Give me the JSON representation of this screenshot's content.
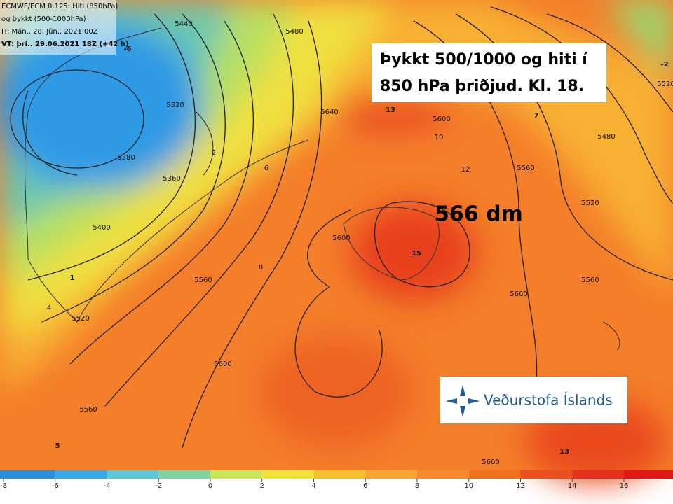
{
  "header": {
    "lines": [
      "ECMWF/ECM 0.125: Hiti (850hPa)",
      "og þykkt (500-1000hPa)",
      "IT: Mán.. 28. Jún.. 2021 00Z",
      "VT: þri.. 29.06.2021 18Z (+42 h)"
    ]
  },
  "title": {
    "lines": [
      "Þykkt 500/1000 og hiti í",
      "850 hPa þriðjud. Kl. 18."
    ]
  },
  "annotation": "566 dm",
  "logo": "Veðurstofa Íslands",
  "colorbar": {
    "ticks": [
      -8,
      -6,
      -4,
      -2,
      0,
      2,
      4,
      6,
      8,
      10,
      12,
      14,
      16
    ],
    "colors": [
      "#2a8fe0",
      "#36a8e8",
      "#5cc8d8",
      "#7ed3a0",
      "#c8e65a",
      "#f0e23c",
      "#f8c030",
      "#f8a535",
      "#f58a2c",
      "#f07020",
      "#ec5020",
      "#e83020",
      "#e01818"
    ]
  },
  "contour_labels": [
    "5440",
    "5480",
    "5320",
    "5280",
    "5360",
    "5400",
    "5520",
    "5560",
    "5600",
    "5640",
    "5600",
    "5560",
    "5520",
    "5480",
    "5520",
    "5560",
    "5600",
    "5600",
    "5600",
    "5560",
    "13",
    "15",
    "7",
    "-2",
    "-6",
    "1",
    "5",
    "13",
    "6",
    "8",
    "10",
    "12",
    "4",
    "2"
  ]
}
